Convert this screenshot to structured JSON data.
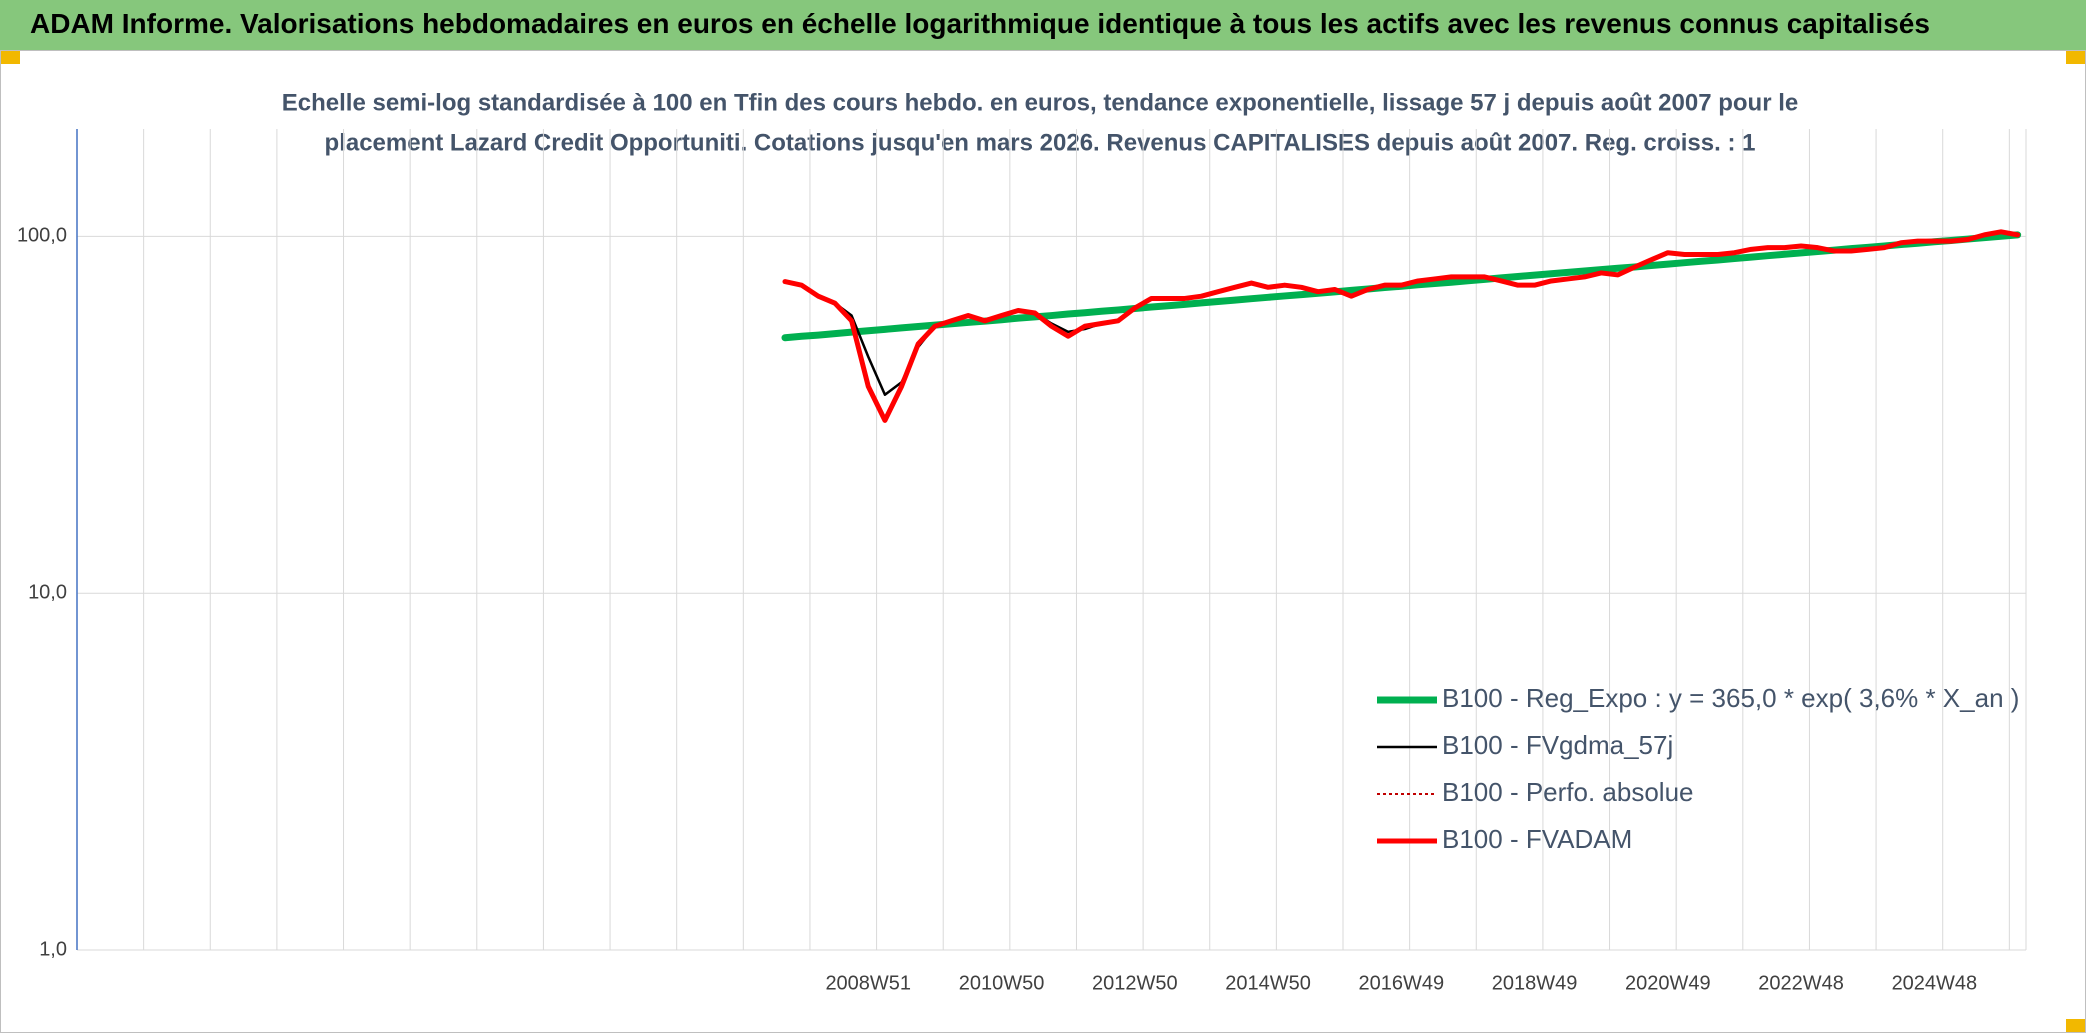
{
  "header": {
    "title": "ADAM Informe. Valorisations hebdomadaires en euros en échelle logarithmique identique à tous les actifs avec les revenus connus capitalisés"
  },
  "chart_data": {
    "type": "line",
    "subtitle": [
      "Echelle semi-log standardisée à 100 en Tfin des cours hebdo. en euros, tendance exponentielle, lissage 57 j depuis août 2007 pour le",
      "placement Lazard Credit Opportuniti. Cotations jusqu'en mars 2026. Revenus CAPITALISES depuis août 2007. Reg. croiss. : 1"
    ],
    "log_scale": true,
    "ylim": [
      1,
      200
    ],
    "yticks": [
      {
        "value": 1,
        "label": "1,0"
      },
      {
        "value": 10,
        "label": "10,0"
      },
      {
        "value": 100,
        "label": "100,0"
      }
    ],
    "grid": true,
    "legend": "lower right",
    "categories": [
      null,
      null,
      null,
      null,
      null,
      null,
      null,
      null,
      null,
      null,
      null,
      null,
      null,
      null,
      null,
      null,
      null,
      null,
      null,
      null,
      null,
      null,
      null,
      null,
      null,
      null,
      null,
      null,
      null,
      null,
      null,
      null,
      null,
      null,
      null,
      null,
      null,
      null,
      null,
      null,
      null,
      null,
      null,
      null,
      null,
      null,
      null,
      "2008W51",
      null,
      null,
      null,
      null,
      null,
      null,
      null,
      "2010W50",
      null,
      null,
      null,
      null,
      null,
      null,
      null,
      "2012W50",
      null,
      null,
      null,
      null,
      null,
      null,
      null,
      "2014W50",
      null,
      null,
      null,
      null,
      null,
      null,
      null,
      "2016W49",
      null,
      null,
      null,
      null,
      null,
      null,
      null,
      "2018W49",
      null,
      null,
      null,
      null,
      null,
      null,
      null,
      "2020W49",
      null,
      null,
      null,
      null,
      null,
      null,
      null,
      "2022W48",
      null,
      null,
      null,
      null,
      null,
      null,
      null,
      "2024W48",
      null,
      null,
      null,
      null,
      null
    ],
    "series": [
      {
        "name": "B100 - Reg_Expo : y = 365,0 * exp( 3,6% *  X_an )",
        "color": "#00b050",
        "style": "solid",
        "values": [
          null,
          null,
          null,
          null,
          null,
          null,
          null,
          null,
          null,
          null,
          null,
          null,
          null,
          null,
          null,
          null,
          null,
          null,
          null,
          null,
          null,
          null,
          null,
          null,
          null,
          null,
          null,
          null,
          null,
          null,
          null,
          null,
          null,
          null,
          null,
          null,
          null,
          null,
          null,
          null,
          null,
          null,
          52.0,
          52.5,
          52.9,
          53.4,
          53.9,
          54.4,
          54.9,
          55.4,
          55.9,
          56.4,
          56.9,
          57.4,
          57.9,
          58.4,
          59.0,
          59.5,
          60.0,
          60.6,
          61.1,
          61.7,
          62.2,
          62.8,
          63.4,
          63.9,
          64.5,
          65.1,
          65.7,
          66.3,
          66.9,
          67.5,
          68.1,
          68.7,
          69.3,
          69.9,
          70.6,
          71.2,
          71.9,
          72.5,
          73.2,
          73.8,
          74.4,
          75.1,
          75.8,
          76.5,
          77.2,
          77.9,
          78.6,
          79.3,
          80.0,
          80.7,
          81.4,
          82.1,
          82.9,
          83.6,
          84.4,
          85.2,
          85.9,
          86.7,
          87.5,
          88.3,
          89.1,
          89.9,
          90.7,
          91.5,
          92.4,
          93.2,
          94.0,
          94.9,
          95.7,
          96.6,
          97.4,
          98.3,
          99.2,
          100.1,
          101.0
        ]
      },
      {
        "name": "B100 - FVgdma_57j",
        "color": "#000000",
        "style": "solid",
        "values": [
          null,
          null,
          null,
          null,
          null,
          null,
          null,
          null,
          null,
          null,
          null,
          null,
          null,
          null,
          null,
          null,
          null,
          null,
          null,
          null,
          null,
          null,
          null,
          null,
          null,
          null,
          null,
          null,
          null,
          null,
          null,
          null,
          null,
          null,
          null,
          null,
          null,
          null,
          null,
          null,
          null,
          null,
          74.7,
          73,
          68,
          65,
          60,
          46,
          36,
          39,
          49,
          56,
          58,
          60,
          58,
          60,
          62,
          61,
          57,
          54,
          55,
          57,
          58,
          63,
          67,
          67,
          67,
          68,
          70,
          72,
          74,
          72,
          73,
          72,
          70,
          71,
          68,
          71,
          73,
          73,
          75,
          76,
          77,
          77,
          77,
          75,
          73,
          73,
          75,
          76,
          77,
          79,
          78,
          82,
          86,
          90,
          89,
          89,
          89,
          90,
          92,
          93,
          93,
          94,
          93,
          91,
          91,
          92,
          93,
          96,
          97,
          97,
          97,
          98,
          101,
          103,
          101
        ]
      },
      {
        "name": "B100 - Perfo. absolue",
        "color": "#c00000",
        "style": "dotted",
        "values": [
          null,
          null,
          null,
          null,
          null,
          null,
          null,
          null,
          null,
          null,
          null,
          null,
          null,
          null,
          null,
          null,
          null,
          null,
          null,
          null,
          null,
          null,
          null,
          null,
          null,
          null,
          null,
          null,
          null,
          null,
          null,
          null,
          null,
          null,
          null,
          null,
          null,
          null,
          null,
          null,
          null,
          null,
          74.7,
          73,
          68,
          65,
          58,
          38,
          30.5,
          38,
          50,
          56,
          58,
          60,
          58,
          60,
          62,
          61,
          56,
          52.5,
          56,
          57,
          58,
          63,
          67,
          67,
          67,
          68,
          70,
          72,
          74,
          72,
          73,
          72,
          70,
          71,
          68,
          71,
          73,
          73,
          75,
          76,
          77,
          77,
          77,
          75,
          73,
          73,
          75,
          76,
          77,
          79,
          78,
          82,
          86,
          90,
          89,
          89,
          89,
          90,
          92,
          93,
          93,
          94,
          93,
          91,
          91,
          92,
          93,
          96,
          97,
          97,
          97,
          98,
          101,
          103,
          101
        ]
      },
      {
        "name": "B100 - FVADAM",
        "color": "#ff0000",
        "style": "solid",
        "values": [
          null,
          null,
          null,
          null,
          null,
          null,
          null,
          null,
          null,
          null,
          null,
          null,
          null,
          null,
          null,
          null,
          null,
          null,
          null,
          null,
          null,
          null,
          null,
          null,
          null,
          null,
          null,
          null,
          null,
          null,
          null,
          null,
          null,
          null,
          null,
          null,
          null,
          null,
          null,
          null,
          null,
          null,
          74.7,
          73,
          68,
          65,
          58,
          38,
          30.5,
          38,
          50,
          56,
          58,
          60,
          58,
          60,
          62,
          61,
          56,
          52.5,
          56,
          57,
          58,
          63,
          67,
          67,
          67,
          68,
          70,
          72,
          74,
          72,
          73,
          72,
          70,
          71,
          68,
          71,
          73,
          73,
          75,
          76,
          77,
          77,
          77,
          75,
          73,
          73,
          75,
          76,
          77,
          79,
          78,
          82,
          86,
          90,
          89,
          89,
          89,
          90,
          92,
          93,
          93,
          94,
          93,
          91,
          91,
          92,
          93,
          96,
          97,
          97,
          97,
          98,
          101,
          103,
          101
        ]
      }
    ]
  }
}
